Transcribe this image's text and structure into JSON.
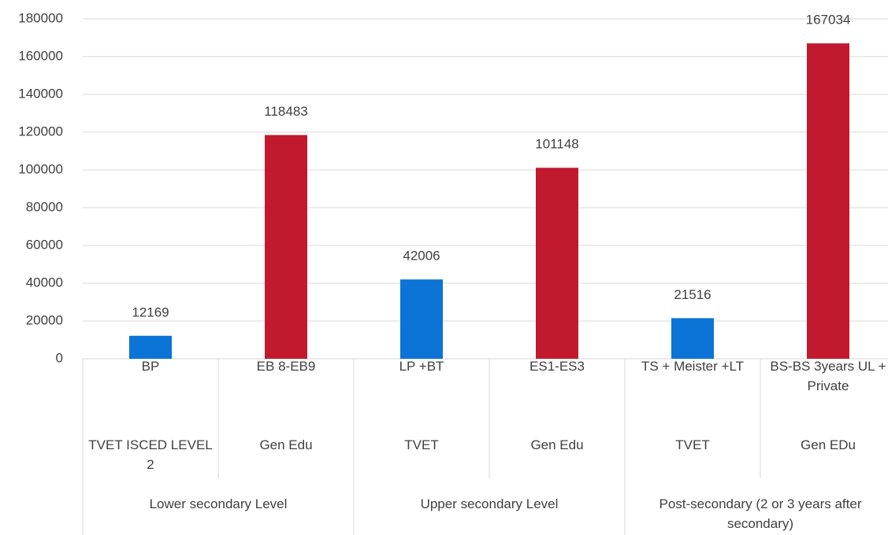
{
  "chart_data": {
    "type": "bar",
    "categories": [
      "BP",
      "EB 8-EB9",
      "LP +BT",
      "ES1-ES3",
      "TS + Meister +LT",
      "BS-BS 3years UL + Private"
    ],
    "subcategories": [
      "TVET ISCED LEVEL 2",
      "Gen Edu",
      "TVET",
      "Gen Edu",
      "TVET",
      "Gen EDu"
    ],
    "groups": [
      "Lower secondary Level",
      "Upper secondary Level",
      "Post-secondary (2 or 3 years after secondary)"
    ],
    "values": [
      12169,
      118483,
      42006,
      101148,
      21516,
      167034
    ],
    "colors": [
      "#0b74d6",
      "#c11a2f",
      "#0b74d6",
      "#c11a2f",
      "#0b74d6",
      "#c11a2f"
    ],
    "ylim": [
      0,
      180000
    ],
    "yticks": [
      0,
      20000,
      40000,
      60000,
      80000,
      100000,
      120000,
      140000,
      160000,
      180000
    ],
    "grid": true
  }
}
